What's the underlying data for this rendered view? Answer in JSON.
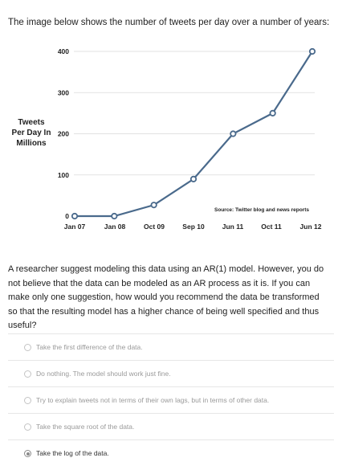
{
  "intro_text": "The image below shows the number of tweets per day over a number of years:",
  "chart_data": {
    "type": "line",
    "categories": [
      "Jan 07",
      "Jan 08",
      "Oct 09",
      "Sep 10",
      "Jun 11",
      "Oct 11",
      "Jun 12"
    ],
    "values": [
      0,
      0,
      27,
      90,
      200,
      250,
      400
    ],
    "yticks": [
      "0",
      "100",
      "200",
      "300",
      "400"
    ],
    "ylabel": [
      "Tweets",
      "Per Day In",
      "Millions"
    ],
    "ylim": [
      0,
      400
    ],
    "source": "Source: Twitter blog and news reports",
    "line_color": "#4a6a8c"
  },
  "question": "A researcher suggest modeling this data using an AR(1) model. However, you do not believe that the data can be modeled as an AR process as it is. If you can make only one suggestion, how would you recommend the data be transformed so that the resulting model has a higher chance of being well specified and thus useful?",
  "options": [
    {
      "label": "Take the first difference of the data.",
      "selected": false
    },
    {
      "label": "Do nothing. The model should work just fine.",
      "selected": false
    },
    {
      "label": "Try to explain tweets not in terms of their own lags, but in terms of other data.",
      "selected": false
    },
    {
      "label": "Take the square root of the data.",
      "selected": false
    },
    {
      "label": "Take the log of the data.",
      "selected": true
    }
  ]
}
